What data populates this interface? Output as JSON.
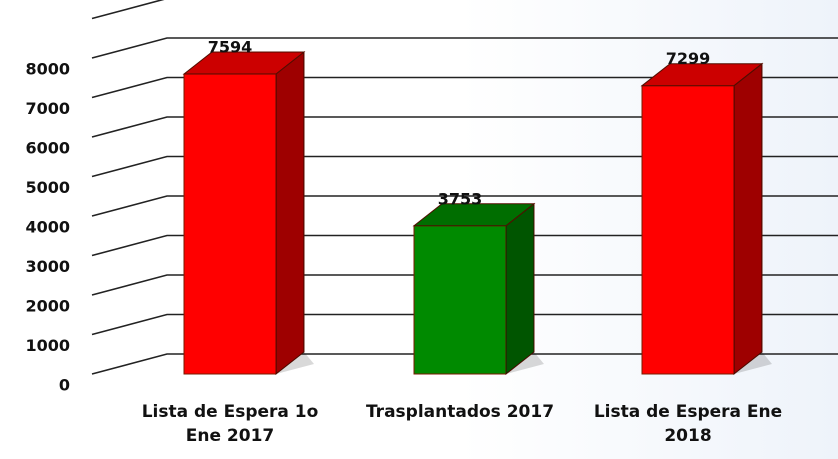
{
  "chart_data": {
    "type": "bar3d",
    "categories": [
      "Lista de Espera 1o Ene 2017",
      "Trasplantados 2017",
      "Lista de Espera Ene 2018"
    ],
    "values": [
      7594,
      3753,
      7299
    ],
    "colors": [
      "#ff0000",
      "#008a00",
      "#ff0000"
    ],
    "ylim": [
      0,
      9000
    ],
    "yticks": [
      0,
      1000,
      2000,
      3000,
      4000,
      5000,
      6000,
      7000,
      8000
    ],
    "grid": true
  }
}
